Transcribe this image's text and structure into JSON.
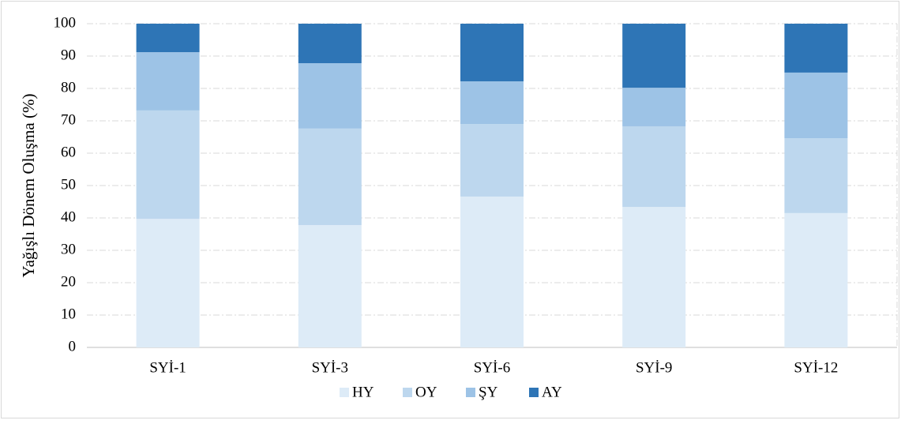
{
  "chart_data": {
    "type": "stacked_bar",
    "y_label": "Yağışlı Dönem Oluşma (%)",
    "categories": [
      "SYİ-1",
      "SYİ-3",
      "SYİ-6",
      "SYİ-9",
      "SYİ-12"
    ],
    "series": [
      {
        "name": "HY",
        "color": "#ddebf7",
        "values": [
          39.7,
          37.8,
          46.6,
          43.4,
          41.5
        ]
      },
      {
        "name": "OY",
        "color": "#bdd7ee",
        "values": [
          33.5,
          29.8,
          22.4,
          24.9,
          23.1
        ]
      },
      {
        "name": "ŞY",
        "color": "#9dc3e6",
        "values": [
          18.0,
          20.2,
          13.2,
          11.9,
          20.3
        ]
      },
      {
        "name": "AY",
        "color": "#2e75b6",
        "values": [
          8.8,
          12.2,
          17.8,
          19.8,
          15.1
        ]
      }
    ],
    "ylim": [
      0,
      100
    ],
    "yticks": [
      0,
      10,
      20,
      30,
      40,
      50,
      60,
      70,
      80,
      90,
      100
    ],
    "grid": true,
    "legend": "bottom"
  }
}
